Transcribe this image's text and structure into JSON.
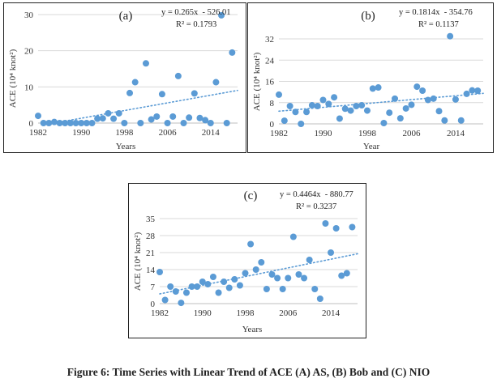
{
  "caption": "Figure 6: Time Series with Linear Trend of ACE (A) AS, (B) Bob and (C) NIO",
  "colors": {
    "marker": "#5b9bd5",
    "trend": "#5b9bd5",
    "grid": "#d9d9d9"
  },
  "chart_data": [
    {
      "type": "scatter",
      "panel_label": "(a)",
      "equation": "y = 0.265x  - 526.01",
      "r_squared": "R² = 0.1793",
      "xlabel": "Years",
      "ylabel": "ACE (10⁴ knot²)",
      "xlim": [
        1982,
        2019
      ],
      "ylim": [
        0,
        30
      ],
      "x_ticks": [
        "1982",
        "1990",
        "1998",
        "2006",
        "2014"
      ],
      "y_ticks": [
        "0",
        "10",
        "20",
        "30"
      ],
      "grid": true,
      "trend": {
        "slope": 0.265,
        "intercept": -526.01
      },
      "series": [
        {
          "x": [
            1982,
            1983,
            1984,
            1985,
            1986,
            1987,
            1988,
            1989,
            1990,
            1991,
            1992,
            1993,
            1994,
            1995,
            1996,
            1997,
            1998,
            1999,
            2000,
            2001,
            2002,
            2003,
            2004,
            2005,
            2006,
            2007,
            2008,
            2009,
            2010,
            2011,
            2012,
            2013,
            2014,
            2015,
            2016,
            2017,
            2018
          ],
          "y": [
            2,
            0,
            0,
            0.3,
            0,
            0,
            0,
            0,
            0,
            0,
            0,
            1.2,
            1.3,
            2.7,
            1.2,
            2.7,
            0,
            8.3,
            11.3,
            0,
            16.5,
            1,
            1.8,
            8,
            0,
            1.8,
            13,
            0,
            1.5,
            8.2,
            1.4,
            0.8,
            0,
            11.3,
            29.8,
            0,
            19.5
          ]
        }
      ]
    },
    {
      "type": "scatter",
      "panel_label": "(b)",
      "equation": "y = 0.1814x  - 354.76",
      "r_squared": "R² = 0.1137",
      "xlabel": "Year",
      "ylabel": "ACE (10⁴ knot²)",
      "xlim": [
        1982,
        2019
      ],
      "ylim": [
        0,
        32
      ],
      "x_ticks": [
        "1982",
        "1990",
        "1998",
        "2006",
        "2014"
      ],
      "y_ticks": [
        "0",
        "8",
        "16",
        "24",
        "32"
      ],
      "grid": true,
      "trend": {
        "slope": 0.1814,
        "intercept": -354.76
      },
      "series": [
        {
          "x": [
            1982,
            1983,
            1984,
            1985,
            1986,
            1987,
            1988,
            1989,
            1990,
            1991,
            1992,
            1993,
            1994,
            1995,
            1996,
            1997,
            1998,
            1999,
            2000,
            2001,
            2002,
            2003,
            2004,
            2005,
            2006,
            2007,
            2008,
            2009,
            2010,
            2011,
            2012,
            2013,
            2014,
            2015,
            2016,
            2017,
            2018
          ],
          "y": [
            11,
            1.2,
            6.7,
            4.5,
            0,
            4.5,
            7,
            6.7,
            9,
            7.5,
            10,
            2,
            5.7,
            5,
            6.7,
            7,
            5,
            13.3,
            13.7,
            0.3,
            4.2,
            9.5,
            2.1,
            5.8,
            7.2,
            14,
            12.5,
            9,
            9.5,
            4.8,
            1.3,
            33,
            9.2,
            1.3,
            11.3,
            12.6,
            12.5
          ]
        }
      ]
    },
    {
      "type": "scatter",
      "panel_label": "(c)",
      "equation": "y = 0.4464x  - 880.77",
      "r_squared": "R² = 0.3237",
      "xlabel": "Years",
      "ylabel": "ACE (10⁴ knot²)",
      "xlim": [
        1982,
        2019
      ],
      "ylim": [
        0,
        35
      ],
      "x_ticks": [
        "1982",
        "1990",
        "1998",
        "2006",
        "2014"
      ],
      "y_ticks": [
        "0",
        "7",
        "14",
        "21",
        "28",
        "35"
      ],
      "grid": true,
      "trend": {
        "slope": 0.4464,
        "intercept": -880.77
      },
      "series": [
        {
          "x": [
            1982,
            1983,
            1984,
            1985,
            1986,
            1987,
            1988,
            1989,
            1990,
            1991,
            1992,
            1993,
            1994,
            1995,
            1996,
            1997,
            1998,
            1999,
            2000,
            2001,
            2002,
            2003,
            2004,
            2005,
            2006,
            2007,
            2008,
            2009,
            2010,
            2011,
            2012,
            2013,
            2014,
            2015,
            2016,
            2017,
            2018
          ],
          "y": [
            13,
            1.5,
            7,
            5,
            0.3,
            4.5,
            7,
            7,
            9,
            8,
            11,
            4.5,
            9,
            6.5,
            10,
            7.5,
            12.5,
            24.5,
            14,
            17,
            6,
            12,
            10.5,
            6,
            10.5,
            27.5,
            12,
            10.5,
            18,
            6,
            2,
            33,
            21,
            31,
            11.5,
            12.5,
            31.5
          ]
        }
      ]
    }
  ]
}
